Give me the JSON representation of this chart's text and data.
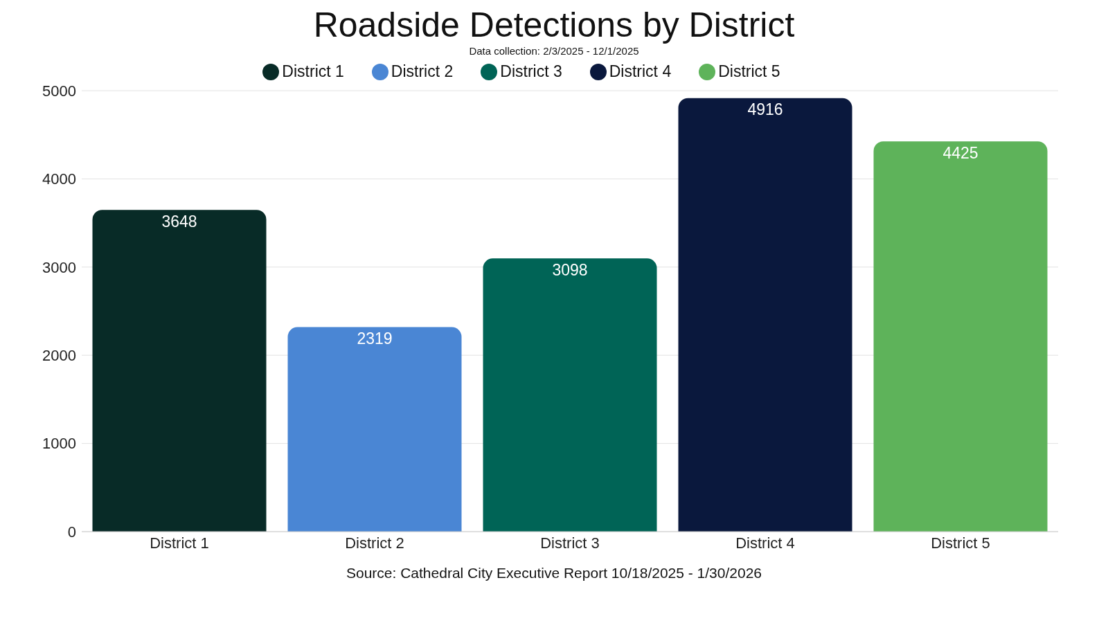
{
  "chart_data": {
    "type": "bar",
    "title": "Roadside Detections by District",
    "subtitle": "Data collection: 2/3/2025 - 12/1/2025",
    "categories": [
      "District 1",
      "District 2",
      "District 3",
      "District 4",
      "District 5"
    ],
    "series": [
      {
        "name": "District 1",
        "color": "#082b27",
        "values": [
          3648,
          null,
          null,
          null,
          null
        ]
      },
      {
        "name": "District 2",
        "color": "#4a86d4",
        "values": [
          null,
          2319,
          null,
          null,
          null
        ]
      },
      {
        "name": "District 3",
        "color": "#006456",
        "values": [
          null,
          null,
          3098,
          null,
          null
        ]
      },
      {
        "name": "District 4",
        "color": "#0a183d",
        "values": [
          null,
          null,
          null,
          4916,
          null
        ]
      },
      {
        "name": "District 5",
        "color": "#5eb35a",
        "values": [
          null,
          null,
          null,
          null,
          4425
        ]
      }
    ],
    "stacked": true,
    "ylim": [
      0,
      5000
    ],
    "yticks": [
      0,
      1000,
      2000,
      3000,
      4000,
      5000
    ],
    "grid": "y",
    "legend": "top",
    "data_labels": true,
    "annotations": [
      "Source: Cathedral City Executive Report 10/18/2025 - 1/30/2026"
    ]
  }
}
